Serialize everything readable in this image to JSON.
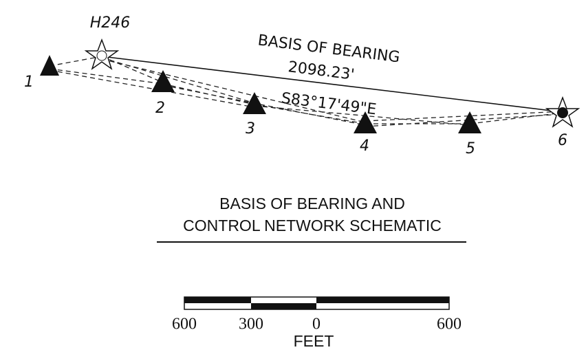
{
  "nodes": [
    {
      "label": "1"
    },
    {
      "label": "H246"
    },
    {
      "label": "2"
    },
    {
      "label": "3"
    },
    {
      "label": "4"
    },
    {
      "label": "5"
    },
    {
      "label": "6"
    }
  ],
  "basis": {
    "label": "BASIS OF BEARING",
    "distance": "2098.23'",
    "bearing": "S83°17'49\"E"
  },
  "title": [
    "BASIS OF BEARING AND",
    "CONTROL NETWORK SCHEMATIC"
  ],
  "scale": {
    "ticks": [
      "600",
      "300",
      "0",
      "600"
    ],
    "unit": "FEET"
  }
}
